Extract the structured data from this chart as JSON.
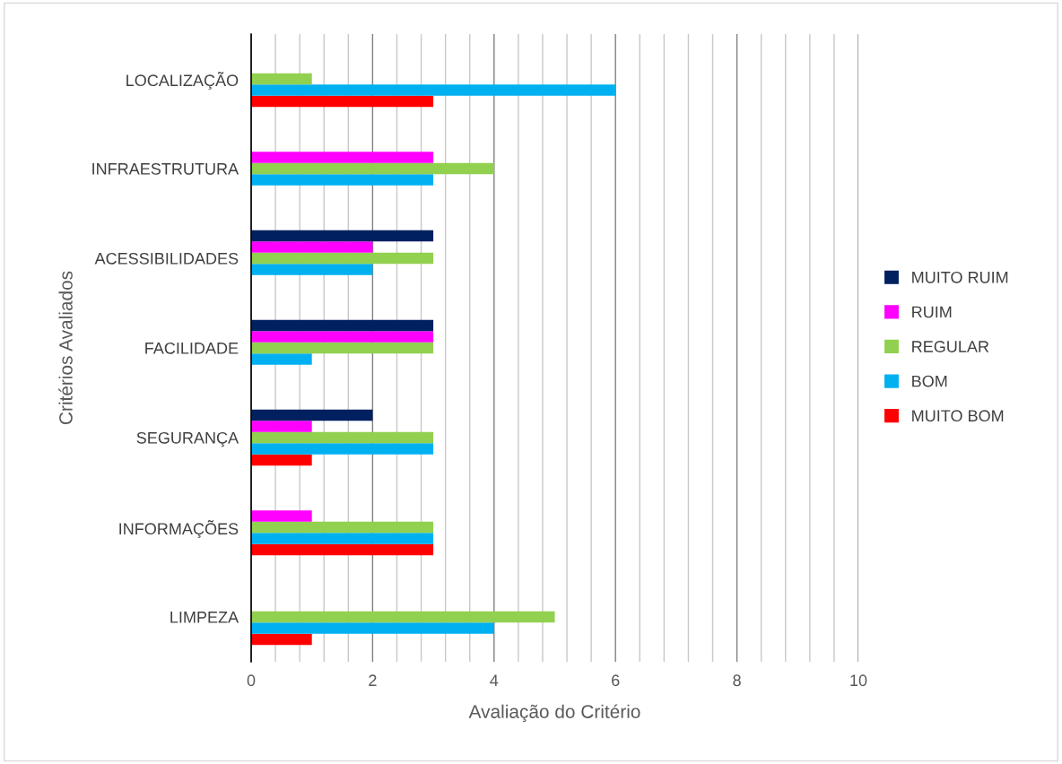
{
  "chart_data": {
    "type": "bar",
    "orientation": "horizontal",
    "xlabel": "Avaliação do Critério",
    "ylabel": "Critérios Avaliados",
    "categories": [
      "LOCALIZAÇÃO",
      "INFRAESTRUTURA",
      "ACESSIBILIDADES",
      "FACILIDADE",
      "SEGURANÇA",
      "INFORMAÇÕES",
      "LIMPEZA"
    ],
    "series": [
      {
        "name": "MUITO BOM",
        "color": "#ff0000",
        "values": [
          3,
          0,
          0,
          0,
          1,
          3,
          1
        ]
      },
      {
        "name": "BOM",
        "color": "#00b0f0",
        "values": [
          6,
          3,
          2,
          1,
          3,
          3,
          4
        ]
      },
      {
        "name": "REGULAR",
        "color": "#92d050",
        "values": [
          1,
          4,
          3,
          3,
          3,
          3,
          5
        ]
      },
      {
        "name": "RUIM",
        "color": "#ff00ff",
        "values": [
          0,
          3,
          2,
          3,
          1,
          1,
          0
        ]
      },
      {
        "name": "MUITO RUIM",
        "color": "#002060",
        "values": [
          0,
          0,
          3,
          3,
          2,
          0,
          0
        ]
      }
    ],
    "xlim": [
      0,
      10
    ],
    "xticks": [
      0,
      {
        "value": 0.4,
        "label": null
      },
      {
        "value": 0.8,
        "label": null
      },
      {
        "value": 1.2,
        "label": null
      },
      {
        "value": 1.6,
        "label": null
      },
      2,
      {
        "value": 2.4,
        "label": null
      },
      {
        "value": 2.8,
        "label": null
      },
      {
        "value": 3.2,
        "label": null
      },
      {
        "value": 3.6,
        "label": null
      },
      4,
      {
        "value": 4.4,
        "label": null
      },
      {
        "value": 4.8,
        "label": null
      },
      {
        "value": 5.2,
        "label": null
      },
      {
        "value": 5.6,
        "label": null
      },
      6,
      {
        "value": 6.4,
        "label": null
      },
      {
        "value": 6.8,
        "label": null
      },
      {
        "value": 7.2,
        "label": null
      },
      {
        "value": 7.6,
        "label": null
      },
      8,
      {
        "value": 8.4,
        "label": null
      },
      {
        "value": 8.8,
        "label": null
      },
      {
        "value": 9.2,
        "label": null
      },
      {
        "value": 9.6,
        "label": null
      },
      10
    ],
    "grid": "x",
    "legend": "right"
  }
}
